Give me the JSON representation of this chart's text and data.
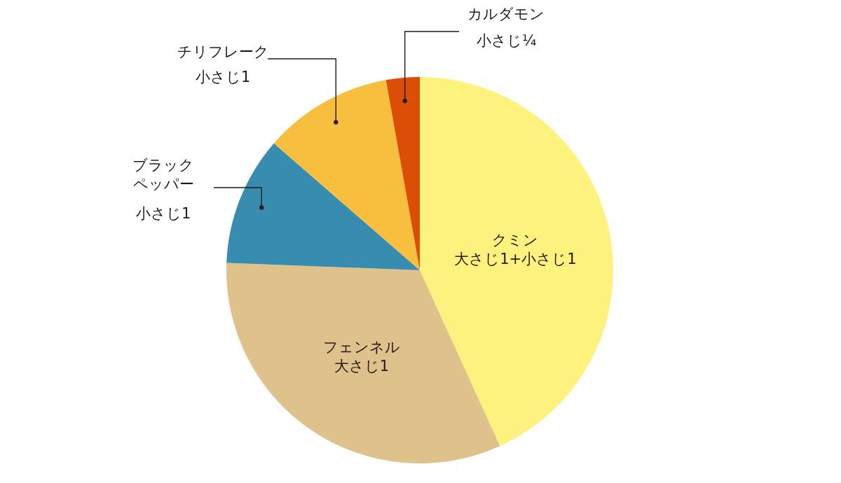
{
  "chart_data": {
    "type": "pie",
    "categories": [
      "クミン",
      "フェンネル",
      "ブラックペッパー",
      "チリフレーク",
      "カルダモン"
    ],
    "values": [
      43.2,
      32.4,
      10.8,
      10.8,
      2.8
    ],
    "value_labels": [
      "大さじ1+小さじ1",
      "大さじ1",
      "小さじ1",
      "小さじ1",
      "小さじ¼"
    ],
    "colors": [
      "#fef27f",
      "#dfc28b",
      "#388caf",
      "#f8be3e",
      "#da4f05"
    ]
  }
}
